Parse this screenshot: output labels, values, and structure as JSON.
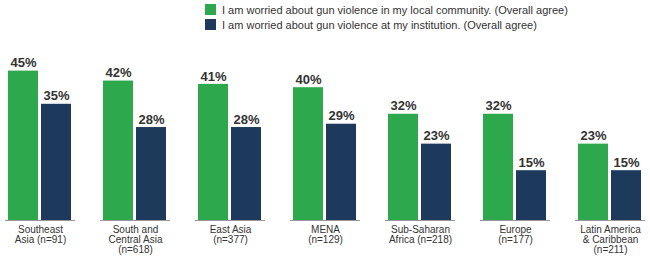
{
  "chart_data": {
    "type": "bar",
    "categories": [
      "Southeast\nAsia (n=91)",
      "South and\nCentral Asia\n(n=618)",
      "East Asia\n(n=377)",
      "MENA\n(n=129)",
      "Sub-Saharan\nAfrica (n=218)",
      "Europe\n(n=177)",
      "Latin America\n& Caribbean\n(n=211)"
    ],
    "series": [
      {
        "name": "I am worried about gun violence in my local community. (Overall agree)",
        "color": "#2ea84c",
        "values": [
          45,
          42,
          41,
          40,
          32,
          32,
          23
        ],
        "value_labels": [
          "45%",
          "42%",
          "41%",
          "40%",
          "32%",
          "32%",
          "23%"
        ]
      },
      {
        "name": "I am worried about gun violence at my institution. (Overall agree)",
        "color": "#1d3a5c",
        "values": [
          35,
          28,
          28,
          29,
          23,
          15,
          15
        ],
        "value_labels": [
          "35%",
          "28%",
          "28%",
          "29%",
          "23%",
          "15%",
          "15%"
        ]
      }
    ],
    "ylim": [
      0,
      50
    ],
    "yticks": [],
    "data_labels": true,
    "tick_labels": "x",
    "legend": "top",
    "grid": false
  }
}
